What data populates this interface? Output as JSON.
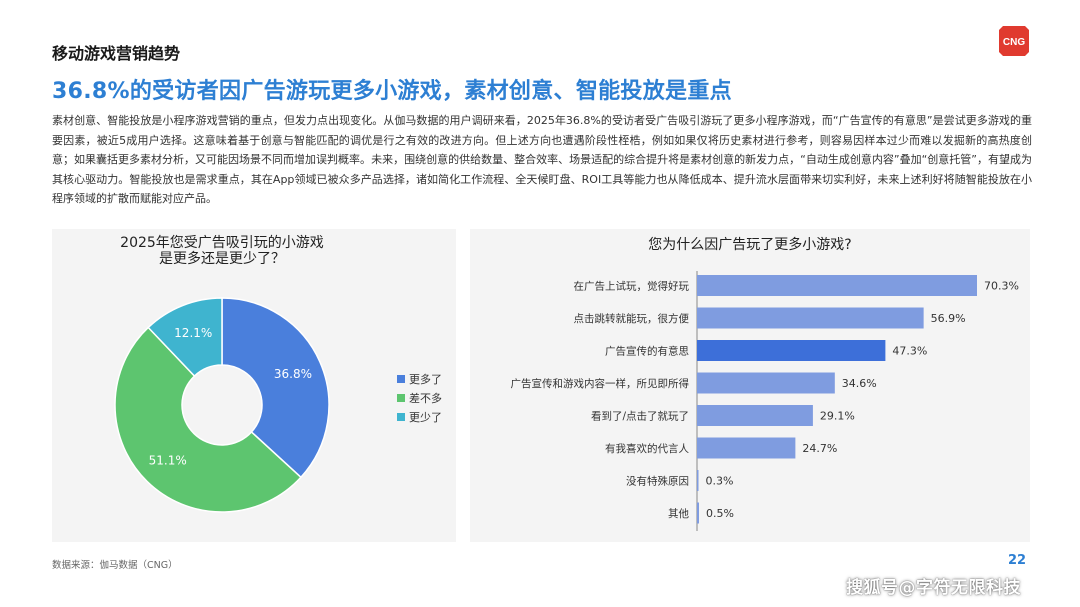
{
  "header": {
    "section_title": "移动游戏营销趋势",
    "headline": "36.8%的受访者因广告游玩更多小游戏，素材创意、智能投放是重点",
    "logo_text": "CNG",
    "colors": {
      "logo_red": "#e03a2f",
      "headline_blue": "#2d7fd3"
    }
  },
  "body_text": "素材创意、智能投放是小程序游戏营销的重点，但发力点出现变化。从伽马数据的用户调研来看，2025年36.8%的受访者受广告吸引游玩了更多小程序游戏，而“广告宣传的有意思”是尝试更多游戏的重要因素，被近5成用户选择。这意味着基于创意与智能匹配的调优是行之有效的改进方向。但上述方向也遭遇阶段性桎梏，例如如果仅将历史素材进行参考，则容易因样本过少而难以发掘新的高热度创意；如果囊括更多素材分析，又可能因场景不同而增加误判概率。未来，围绕创意的供给数量、整合效率、场景适配的综合提升将是素材创意的新发力点，“自动生成创意内容”叠加“创意托管”，有望成为其核心驱动力。智能投放也是需求重点，其在App领域已被众多产品选择，诸如简化工作流程、全天候盯盘、ROI工具等能力也从降低成本、提升流水层面带来切实利好，未来上述利好将随智能投放在小程序领域的扩散而赋能对应产品。",
  "chart_data": [
    {
      "type": "pie",
      "title_lines": [
        "2025年您受广告吸引玩的小游戏",
        "是更多还是更少了？"
      ],
      "slices": [
        {
          "label": "更多了",
          "value": 36.8,
          "value_label": "36.8%",
          "color": "#4a7fdc"
        },
        {
          "label": "差不多",
          "value": 51.1,
          "value_label": "51.1%",
          "color": "#5dc56f"
        },
        {
          "label": "更少了",
          "value": 12.1,
          "value_label": "12.1%",
          "color": "#3fb4cf"
        }
      ],
      "donut": true,
      "legend_position": "right"
    },
    {
      "type": "bar",
      "orientation": "horizontal",
      "title": "您为什么因广告玩了更多小游戏?",
      "categories": [
        "在广告上试玩，觉得好玩",
        "点击跳转就能玩，很方便",
        "广告宣传的有意思",
        "广告宣传和游戏内容一样，所见即所得",
        "看到了/点击了就玩了",
        "有我喜欢的代言人",
        "没有特殊原因",
        "其他"
      ],
      "values": [
        70.3,
        56.9,
        47.3,
        34.6,
        29.1,
        24.7,
        0.3,
        0.5
      ],
      "value_labels": [
        "70.3%",
        "56.9%",
        "47.3%",
        "34.6%",
        "29.1%",
        "24.7%",
        "0.3%",
        "0.5%"
      ],
      "highlight_index": 2,
      "xlim": [
        0,
        80
      ],
      "colors": {
        "bar": "#7f9ce0",
        "highlight": "#3d6fd9"
      }
    }
  ],
  "footer": {
    "source": "数据来源：伽马数据（CNG）",
    "page_number": "22",
    "watermark": "搜狐号@字符无限科技"
  }
}
